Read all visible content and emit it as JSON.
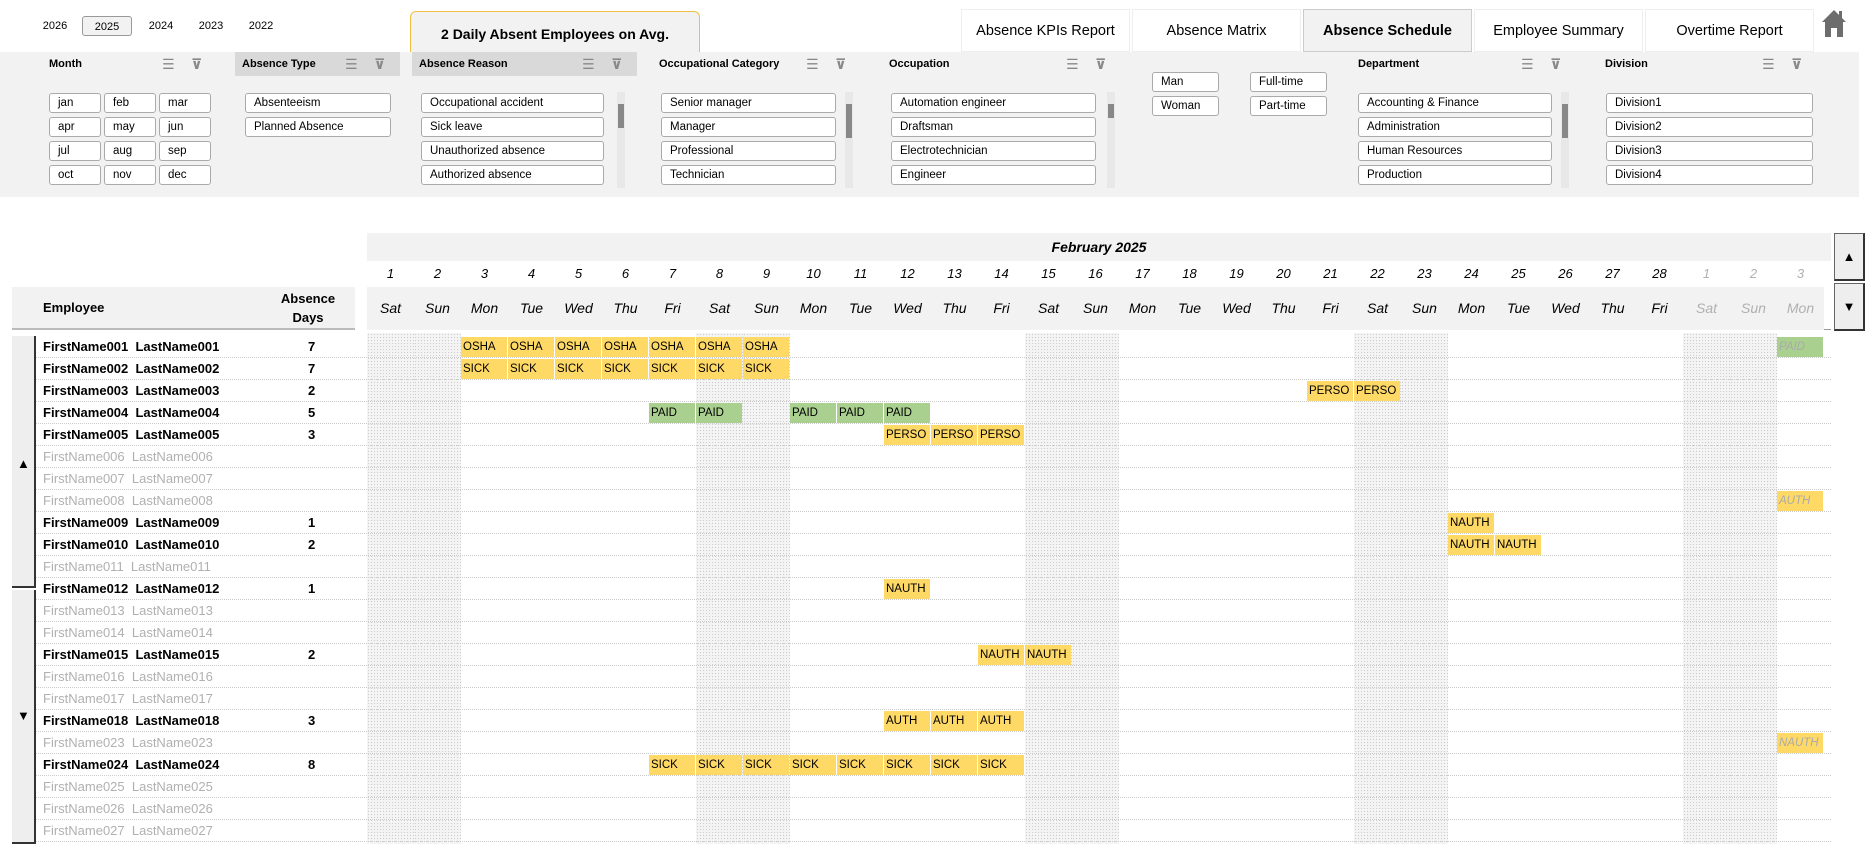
{
  "years": [
    {
      "label": "2026",
      "selected": false
    },
    {
      "label": "2025",
      "selected": true
    },
    {
      "label": "2024",
      "selected": false
    },
    {
      "label": "2023",
      "selected": false
    },
    {
      "label": "2022",
      "selected": false
    }
  ],
  "kpi": "2 Daily Absent Employees on Avg.",
  "tabs": [
    {
      "label": "Absence KPIs Report",
      "active": false
    },
    {
      "label": "Absence Matrix",
      "active": false
    },
    {
      "label": "Absence Schedule",
      "active": true
    },
    {
      "label": "Employee Summary",
      "active": false
    },
    {
      "label": "Overtime Report",
      "active": false
    }
  ],
  "home_icon": "home-icon",
  "slicers": {
    "month": {
      "title": "Month",
      "items": [
        "jan",
        "feb",
        "mar",
        "apr",
        "may",
        "jun",
        "jul",
        "aug",
        "sep",
        "oct",
        "nov",
        "dec"
      ]
    },
    "absence_type": {
      "title": "Absence Type",
      "items": [
        "Absenteeism",
        "Planned Absence"
      ]
    },
    "absence_reason": {
      "title": "Absence Reason",
      "items": [
        "Occupational accident",
        "Sick leave",
        "Unauthorized absence",
        "Authorized absence"
      ]
    },
    "occupational_category": {
      "title": "Occupational Category",
      "items": [
        "Senior manager",
        "Manager",
        "Professional",
        "Technician"
      ]
    },
    "occupation": {
      "title": "Occupation",
      "items": [
        "Automation engineer",
        "Draftsman",
        "Electrotechnician",
        "Engineer"
      ]
    },
    "gender": {
      "items": [
        "Man",
        "Woman"
      ]
    },
    "employment": {
      "items": [
        "Full-time",
        "Part-time"
      ]
    },
    "department": {
      "title": "Department",
      "items": [
        "Accounting & Finance",
        "Administration",
        "Human Resources",
        "Production"
      ]
    },
    "division": {
      "title": "Division",
      "items": [
        "Division1",
        "Division2",
        "Division3",
        "Division4"
      ]
    }
  },
  "schedule": {
    "month_title": "February 2025",
    "employee_header": "Employee",
    "days_header": [
      "Absence",
      "Days"
    ],
    "days": [
      {
        "d": "1",
        "dow": "Sat"
      },
      {
        "d": "2",
        "dow": "Sun"
      },
      {
        "d": "3",
        "dow": "Mon"
      },
      {
        "d": "4",
        "dow": "Tue"
      },
      {
        "d": "5",
        "dow": "Wed"
      },
      {
        "d": "6",
        "dow": "Thu"
      },
      {
        "d": "7",
        "dow": "Fri"
      },
      {
        "d": "8",
        "dow": "Sat"
      },
      {
        "d": "9",
        "dow": "Sun"
      },
      {
        "d": "10",
        "dow": "Mon"
      },
      {
        "d": "11",
        "dow": "Tue"
      },
      {
        "d": "12",
        "dow": "Wed"
      },
      {
        "d": "13",
        "dow": "Thu"
      },
      {
        "d": "14",
        "dow": "Fri"
      },
      {
        "d": "15",
        "dow": "Sat"
      },
      {
        "d": "16",
        "dow": "Sun"
      },
      {
        "d": "17",
        "dow": "Mon"
      },
      {
        "d": "18",
        "dow": "Tue"
      },
      {
        "d": "19",
        "dow": "Wed"
      },
      {
        "d": "20",
        "dow": "Thu"
      },
      {
        "d": "21",
        "dow": "Fri"
      },
      {
        "d": "22",
        "dow": "Sat"
      },
      {
        "d": "23",
        "dow": "Sun"
      },
      {
        "d": "24",
        "dow": "Mon"
      },
      {
        "d": "25",
        "dow": "Tue"
      },
      {
        "d": "26",
        "dow": "Wed"
      },
      {
        "d": "27",
        "dow": "Thu"
      },
      {
        "d": "28",
        "dow": "Fri"
      },
      {
        "d": "1",
        "dow": "Sat",
        "next_month": true
      },
      {
        "d": "2",
        "dow": "Sun",
        "next_month": true
      },
      {
        "d": "3",
        "dow": "Mon",
        "next_month": true
      }
    ],
    "colors": {
      "yellow": "#ffd966",
      "green": "#a9d08e",
      "weekend": "#f4f4f4",
      "inactive_text": "#bfbfbf"
    },
    "code_colors": {
      "OSHA": "yellow",
      "SICK": "yellow",
      "PERSO": "yellow",
      "NAUTH": "yellow",
      "AUTH": "yellow",
      "PAID": "green"
    },
    "employees": [
      {
        "name": "FirstName001  LastName001",
        "days": "7",
        "absences": [
          [
            "3",
            "OSHA"
          ],
          [
            "4",
            "OSHA"
          ],
          [
            "5",
            "OSHA"
          ],
          [
            "6",
            "OSHA"
          ],
          [
            "7",
            "OSHA"
          ],
          [
            "8",
            "OSHA"
          ],
          [
            "9",
            "OSHA"
          ],
          [
            "Mar 3",
            "PAID"
          ]
        ]
      },
      {
        "name": "FirstName002  LastName002",
        "days": "7",
        "absences": [
          [
            "3",
            "SICK"
          ],
          [
            "4",
            "SICK"
          ],
          [
            "5",
            "SICK"
          ],
          [
            "6",
            "SICK"
          ],
          [
            "7",
            "SICK"
          ],
          [
            "8",
            "SICK"
          ],
          [
            "9",
            "SICK"
          ]
        ]
      },
      {
        "name": "FirstName003  LastName003",
        "days": "2",
        "absences": [
          [
            "21",
            "PERSO"
          ],
          [
            "22",
            "PERSO"
          ]
        ]
      },
      {
        "name": "FirstName004  LastName004",
        "days": "5",
        "absences": [
          [
            "7",
            "PAID"
          ],
          [
            "8",
            "PAID"
          ],
          [
            "10",
            "PAID"
          ],
          [
            "11",
            "PAID"
          ],
          [
            "12",
            "PAID"
          ]
        ]
      },
      {
        "name": "FirstName005  LastName005",
        "days": "3",
        "absences": [
          [
            "12",
            "PERSO"
          ],
          [
            "13",
            "PERSO"
          ],
          [
            "14",
            "PERSO"
          ]
        ]
      },
      {
        "name": "FirstName006  LastName006",
        "days": null,
        "absences": []
      },
      {
        "name": "FirstName007  LastName007",
        "days": null,
        "absences": []
      },
      {
        "name": "FirstName008  LastName008",
        "days": null,
        "absences": [
          [
            "Mar 3",
            "AUTH"
          ]
        ]
      },
      {
        "name": "FirstName009  LastName009",
        "days": "1",
        "absences": [
          [
            "24",
            "NAUTH"
          ]
        ]
      },
      {
        "name": "FirstName010  LastName010",
        "days": "2",
        "absences": [
          [
            "24",
            "NAUTH"
          ],
          [
            "25",
            "NAUTH"
          ]
        ]
      },
      {
        "name": "FirstName011  LastName011",
        "days": null,
        "absences": []
      },
      {
        "name": "FirstName012  LastName012",
        "days": "1",
        "absences": [
          [
            "12",
            "NAUTH"
          ]
        ]
      },
      {
        "name": "FirstName013  LastName013",
        "days": null,
        "absences": []
      },
      {
        "name": "FirstName014  LastName014",
        "days": null,
        "absences": []
      },
      {
        "name": "FirstName015  LastName015",
        "days": "2",
        "absences": [
          [
            "14",
            "NAUTH"
          ],
          [
            "15",
            "NAUTH"
          ]
        ]
      },
      {
        "name": "FirstName016  LastName016",
        "days": null,
        "absences": []
      },
      {
        "name": "FirstName017  LastName017",
        "days": null,
        "absences": []
      },
      {
        "name": "FirstName018  LastName018",
        "days": "3",
        "absences": [
          [
            "12",
            "AUTH"
          ],
          [
            "13",
            "AUTH"
          ],
          [
            "14",
            "AUTH"
          ]
        ]
      },
      {
        "name": "FirstName023  LastName023",
        "days": null,
        "absences": [
          [
            "Mar 3",
            "NAUTH"
          ]
        ]
      },
      {
        "name": "FirstName024  LastName024",
        "days": "8",
        "absences": [
          [
            "7",
            "SICK"
          ],
          [
            "8",
            "SICK"
          ],
          [
            "9",
            "SICK"
          ],
          [
            "10",
            "SICK"
          ],
          [
            "11",
            "SICK"
          ],
          [
            "12",
            "SICK"
          ],
          [
            "13",
            "SICK"
          ],
          [
            "14",
            "SICK"
          ]
        ]
      },
      {
        "name": "FirstName025  LastName025",
        "days": null,
        "absences": []
      },
      {
        "name": "FirstName026  LastName026",
        "days": null,
        "absences": []
      },
      {
        "name": "FirstName027  LastName027",
        "days": null,
        "absences": []
      }
    ]
  }
}
